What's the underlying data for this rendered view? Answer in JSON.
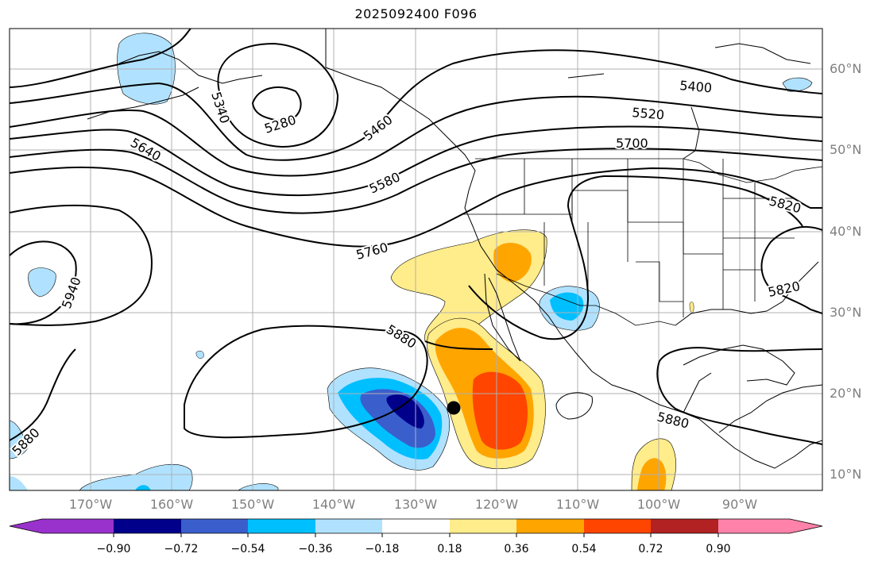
{
  "title": "2025092400 F096",
  "lat_labels": [
    "60°N",
    "50°N",
    "40°N",
    "30°N",
    "20°N",
    "10°N"
  ],
  "lon_labels": [
    "170°W",
    "160°W",
    "150°W",
    "140°W",
    "130°W",
    "120°W",
    "110°W",
    "100°W",
    "90°W"
  ],
  "contour_labels": [
    "5280",
    "5340",
    "5400",
    "5460",
    "5520",
    "5580",
    "5640",
    "5700",
    "5760",
    "5820",
    "5820",
    "5880",
    "5880",
    "5880",
    "5940"
  ],
  "colorbar": {
    "ticks": [
      "−0.90",
      "−0.72",
      "−0.54",
      "−0.36",
      "−0.18",
      "0.18",
      "0.36",
      "0.54",
      "0.72",
      "0.90"
    ],
    "colors": [
      "#9932cc",
      "#00008b",
      "#3a5fcd",
      "#00bfff",
      "#b0e2ff",
      "#ffffff",
      "#ffec8b",
      "#ffa500",
      "#ff4500",
      "#b22222",
      "#ff82ab"
    ]
  },
  "marker": "storm-position-dot"
}
